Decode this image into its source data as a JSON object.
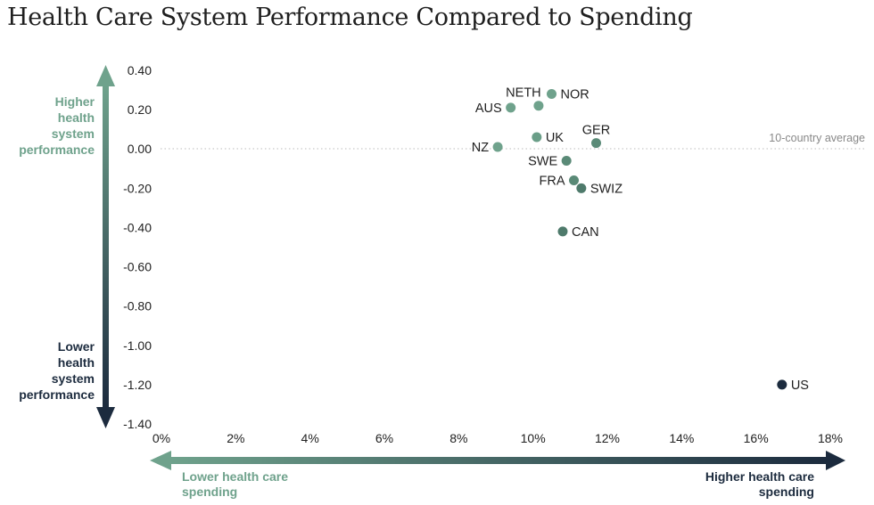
{
  "chart_data": {
    "type": "scatter",
    "title": "Health Care System Performance Compared to Spending",
    "xlim": [
      0,
      18
    ],
    "ylim": [
      -1.4,
      0.4
    ],
    "x_ticks": [
      "0%",
      "2%",
      "4%",
      "6%",
      "8%",
      "10%",
      "12%",
      "14%",
      "16%",
      "18%"
    ],
    "y_ticks": [
      "0.40",
      "0.20",
      "0.00",
      "-0.20",
      "-0.40",
      "-0.60",
      "-0.80",
      "-1.00",
      "-1.20",
      "-1.40"
    ],
    "y_axis_labels": {
      "top": "Higher health system performance",
      "bottom": "Lower health system performance"
    },
    "x_axis_labels": {
      "left": "Lower health care spending",
      "right": "Higher health care spending"
    },
    "reference_line": {
      "y": 0,
      "label": "10-country average"
    },
    "grid": false,
    "colors": {
      "light": "#6fa28c",
      "dark": "#1c2b3e"
    },
    "points": [
      {
        "label": "NZ",
        "x": 9.05,
        "y": 0.01,
        "color": "#6fa28c"
      },
      {
        "label": "AUS",
        "x": 9.4,
        "y": 0.21,
        "color": "#6fa28c"
      },
      {
        "label": "NETH",
        "x": 10.15,
        "y": 0.22,
        "color": "#6fa28c"
      },
      {
        "label": "NOR",
        "x": 10.5,
        "y": 0.28,
        "color": "#6fa28c"
      },
      {
        "label": "UK",
        "x": 10.1,
        "y": 0.06,
        "color": "#6a9e88"
      },
      {
        "label": "GER",
        "x": 11.7,
        "y": 0.03,
        "color": "#5a8a77"
      },
      {
        "label": "SWE",
        "x": 10.9,
        "y": -0.06,
        "color": "#5a8a77"
      },
      {
        "label": "FRA",
        "x": 11.1,
        "y": -0.16,
        "color": "#5a8a77"
      },
      {
        "label": "SWIZ",
        "x": 11.3,
        "y": -0.2,
        "color": "#4e7a6b"
      },
      {
        "label": "CAN",
        "x": 10.8,
        "y": -0.42,
        "color": "#4e7a6b"
      },
      {
        "label": "US",
        "x": 16.7,
        "y": -1.2,
        "color": "#1c2b3e"
      }
    ]
  }
}
